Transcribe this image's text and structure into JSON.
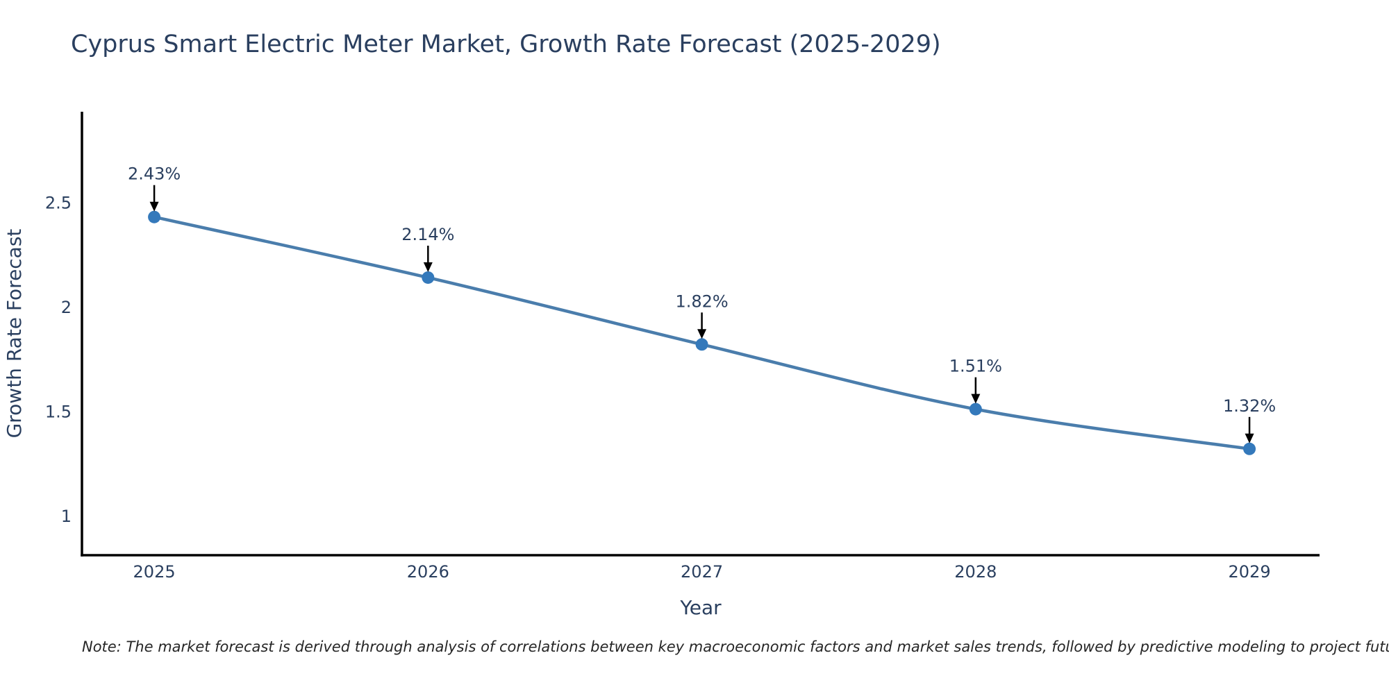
{
  "header": {
    "title": "Cyprus Smart Electric Meter Market, Growth Rate Forecast (2025-2029)"
  },
  "note": {
    "text": "Note: The market forecast is derived through analysis of correlations between key macroeconomic factors and market sales trends, followed by predictive modeling to project future sales"
  },
  "chart_data": {
    "type": "line",
    "title": "Cyprus Smart Electric Meter Market, Growth Rate Forecast (2025-2029)",
    "xlabel": "Year",
    "ylabel": "Growth Rate Forecast",
    "x": [
      2025,
      2026,
      2027,
      2028,
      2029
    ],
    "values": [
      2.43,
      2.14,
      1.82,
      1.51,
      1.32
    ],
    "point_labels": [
      "2.43%",
      "2.14%",
      "1.82%",
      "1.51%",
      "1.32%"
    ],
    "xticks": [
      "2025",
      "2026",
      "2027",
      "2028",
      "2029"
    ],
    "yticks": [
      1,
      1.5,
      2,
      2.5
    ],
    "ytick_labels": [
      "1",
      "1.5",
      "2",
      "2.5"
    ],
    "xlim": [
      2024.736,
      2029.256
    ],
    "ylim": [
      0.811,
      2.934
    ],
    "grid": false,
    "legend": false,
    "line_shape": "spline",
    "colors": {
      "line": "#4a7dac",
      "marker": "#3479bb",
      "axis": "#000000",
      "tick_text": "#2a3f5f",
      "annotation_text": "#2a3f5f",
      "annotation_arrow": "#000000"
    }
  }
}
